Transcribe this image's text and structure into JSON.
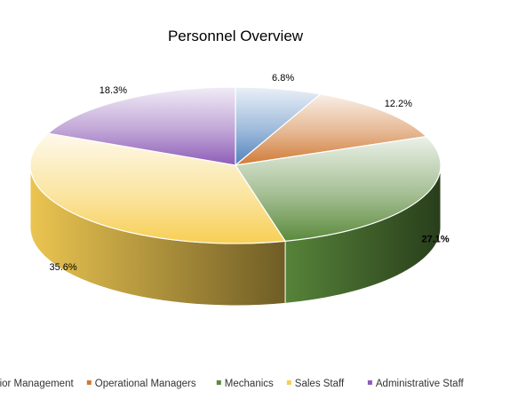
{
  "chart_data": {
    "type": "pie",
    "title": "Personnel Overview",
    "categories": [
      "Senior Management",
      "Operational Managers",
      "Mechanics",
      "Sales Staff",
      "Administrative Staff"
    ],
    "values": [
      6.8,
      12.2,
      27.1,
      35.6,
      18.3
    ],
    "value_labels": [
      "6.8%",
      "12.2%",
      "27.1%",
      "35.6%",
      "18.3%"
    ],
    "colors": [
      "#4f81bd",
      "#d07a35",
      "#5b8a3c",
      "#f7cf55",
      "#8e5db7"
    ],
    "legend": "bottom"
  }
}
